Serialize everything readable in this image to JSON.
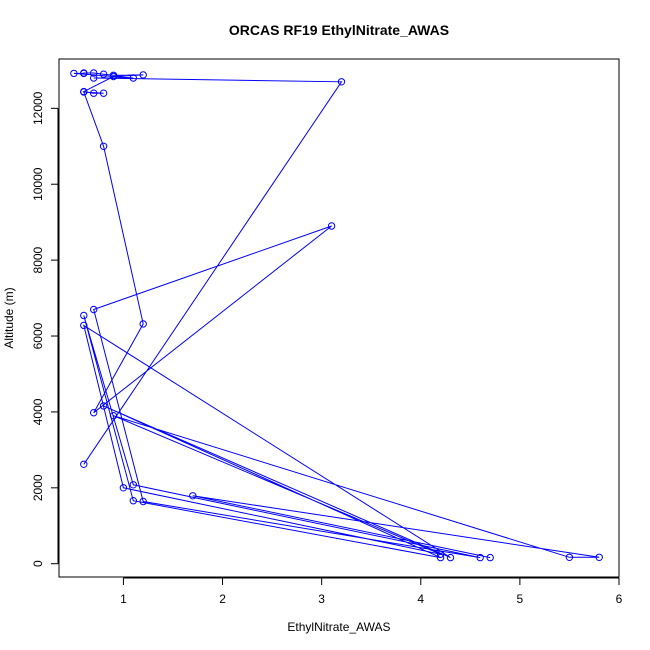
{
  "chart_data": {
    "type": "line",
    "title": "ORCAS RF19 EthylNitrate_AWAS",
    "xlabel": "EthylNitrate_AWAS",
    "ylabel": "Altitude (m)",
    "xlim": [
      0.35,
      6.0
    ],
    "ylim": [
      -350,
      13300
    ],
    "xticks": [
      1,
      2,
      3,
      4,
      5,
      6
    ],
    "yticks": [
      0,
      2000,
      4000,
      6000,
      8000,
      10000,
      12000
    ],
    "grid": false,
    "legend": "none",
    "color": "#0000ff",
    "marker": "open-circle",
    "points": [
      {
        "x": 0.6,
        "y": 2620
      },
      {
        "x": 3.2,
        "y": 12700
      },
      {
        "x": 0.7,
        "y": 12800
      },
      {
        "x": 1.1,
        "y": 12800
      },
      {
        "x": 0.5,
        "y": 12920
      },
      {
        "x": 0.6,
        "y": 12920
      },
      {
        "x": 0.6,
        "y": 12930
      },
      {
        "x": 0.7,
        "y": 12930
      },
      {
        "x": 0.8,
        "y": 12900
      },
      {
        "x": 0.9,
        "y": 12870
      },
      {
        "x": 1.2,
        "y": 12880
      },
      {
        "x": 0.9,
        "y": 12840
      },
      {
        "x": 0.6,
        "y": 12440
      },
      {
        "x": 0.7,
        "y": 12400
      },
      {
        "x": 0.8,
        "y": 12400
      },
      {
        "x": 0.6,
        "y": 12430
      },
      {
        "x": 0.8,
        "y": 11000
      },
      {
        "x": 1.2,
        "y": 6320
      },
      {
        "x": 0.7,
        "y": 3980
      },
      {
        "x": 3.1,
        "y": 8900
      },
      {
        "x": 0.7,
        "y": 6700
      },
      {
        "x": 1.2,
        "y": 1640
      },
      {
        "x": 4.6,
        "y": 160
      },
      {
        "x": 1.1,
        "y": 2080
      },
      {
        "x": 0.6,
        "y": 6540
      },
      {
        "x": 1.1,
        "y": 1660
      },
      {
        "x": 4.2,
        "y": 160
      },
      {
        "x": 0.8,
        "y": 4160
      },
      {
        "x": 4.3,
        "y": 160
      },
      {
        "x": 0.6,
        "y": 6280
      },
      {
        "x": 1.0,
        "y": 2000
      },
      {
        "x": 4.2,
        "y": 250
      },
      {
        "x": 0.9,
        "y": 3900
      },
      {
        "x": 5.5,
        "y": 170
      },
      {
        "x": 5.8,
        "y": 170
      },
      {
        "x": 1.7,
        "y": 1790
      },
      {
        "x": 4.7,
        "y": 160
      }
    ]
  }
}
